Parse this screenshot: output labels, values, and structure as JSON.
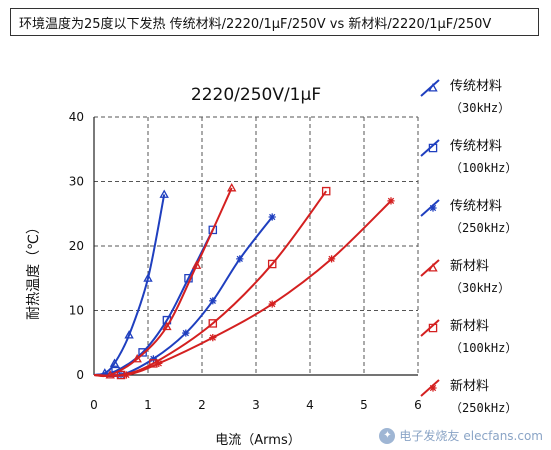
{
  "header": {
    "text": "环境温度为25度以下发热 传统材料/2220/1μF/250V vs 新材料/2220/1μF/250V"
  },
  "watermark": {
    "text": "电子发烧友",
    "domain": "elecfans.com",
    "icon": "logo-icon"
  },
  "chart_data": {
    "type": "line",
    "title": "2220/250V/1μF",
    "xlabel": "电流（Arms）",
    "ylabel": "耐热温度（℃）",
    "xlim": [
      0,
      6
    ],
    "ylim": [
      0,
      40
    ],
    "xticks": [
      "0",
      "1",
      "2",
      "3",
      "4",
      "5",
      "6"
    ],
    "yticks": [
      "0",
      "10",
      "20",
      "30",
      "40"
    ],
    "grid": "dashed",
    "legend_position": "right",
    "series": [
      {
        "name": "传统材料（30kHz）",
        "color": "#1f3fbf",
        "marker": "triangle",
        "x": [
          0,
          0.2,
          0.38,
          0.65,
          1.0,
          1.3
        ],
        "y": [
          0,
          0.3,
          1.8,
          6.2,
          15,
          28
        ]
      },
      {
        "name": "传统材料（100kHz）",
        "color": "#1f3fbf",
        "marker": "square",
        "x": [
          0,
          0.4,
          0.9,
          1.35,
          1.75,
          2.2
        ],
        "y": [
          0,
          0.6,
          3.5,
          8.5,
          15,
          22.5
        ]
      },
      {
        "name": "传统材料（250kHz）",
        "color": "#1f3fbf",
        "marker": "star",
        "x": [
          0,
          0.5,
          1.1,
          1.7,
          2.2,
          2.7,
          3.3
        ],
        "y": [
          0,
          0,
          2.5,
          6.5,
          11.5,
          18,
          24.5
        ]
      },
      {
        "name": "新材料（30kHz）",
        "color": "#d42020",
        "marker": "triangle",
        "x": [
          0,
          0.3,
          0.8,
          1.35,
          1.9,
          2.55
        ],
        "y": [
          0,
          0,
          2.5,
          7.5,
          17,
          29
        ]
      },
      {
        "name": "新材料（100kHz）",
        "color": "#d42020",
        "marker": "square",
        "x": [
          0,
          0.5,
          1.1,
          2.2,
          3.3,
          4.3
        ],
        "y": [
          0,
          0,
          1.8,
          8,
          17.2,
          28.5
        ]
      },
      {
        "name": "新材料（250kHz）",
        "color": "#d42020",
        "marker": "star",
        "x": [
          0,
          0.6,
          1.2,
          2.2,
          3.3,
          4.4,
          5.5
        ],
        "y": [
          0,
          0,
          1.8,
          5.8,
          11,
          18,
          27
        ]
      }
    ],
    "legend_lines": [
      [
        "传统材料",
        "（30kHz）"
      ],
      [
        "传统材料",
        "（100kHz）"
      ],
      [
        "传统材料",
        "（250kHz）"
      ],
      [
        "新材料",
        "（30kHz）"
      ],
      [
        "新材料",
        "（100kHz）"
      ],
      [
        "新材料",
        "（250kHz）"
      ]
    ]
  }
}
